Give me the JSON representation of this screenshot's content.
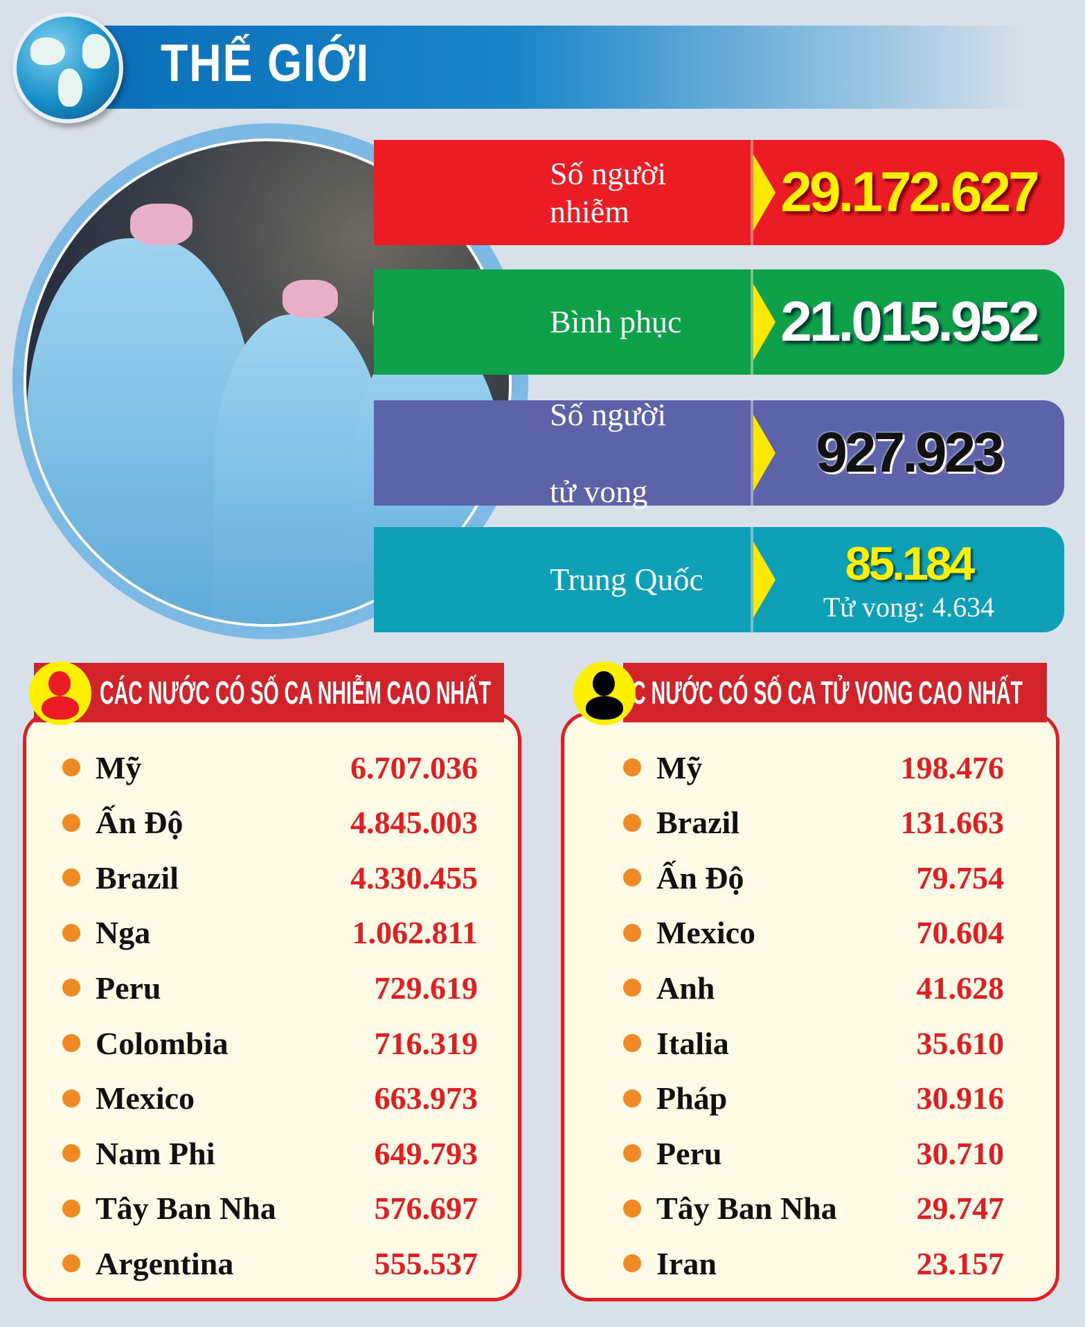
{
  "header": {
    "title": "THẾ GIỚI",
    "globe_icon": "globe-icon"
  },
  "colors": {
    "infected": "#ec1c24",
    "recovered": "#0ea14a",
    "deaths": "#5c63a8",
    "china": "#0ea0b6",
    "accent_yellow": "#ffe800",
    "list_red": "#d2232a"
  },
  "stats": [
    {
      "label_lines": [
        "Số người",
        "nhiễm"
      ],
      "value": "29.172.627",
      "value_color": "#ffef00"
    },
    {
      "label_lines": [
        "Bình phục"
      ],
      "value": "21.015.952",
      "value_color": "#ffffff"
    },
    {
      "label_lines": [
        "Số  người",
        "tử vong"
      ],
      "value": "927.923",
      "value_color": "#111111"
    },
    {
      "label_lines": [
        "Trung Quốc"
      ],
      "value": "85.184",
      "sub": "Tử vong: 4.634",
      "value_color": "#ffef00"
    }
  ],
  "lists": [
    {
      "title": "CÁC NƯỚC CÓ SỐ CA NHIỄM CAO NHẤT",
      "icon": "person-icon",
      "rows": [
        {
          "name": "Mỹ",
          "value": "6.707.036"
        },
        {
          "name": "Ấn Độ",
          "value": "4.845.003"
        },
        {
          "name": "Brazil",
          "value": "4.330.455"
        },
        {
          "name": "Nga",
          "value": "1.062.811"
        },
        {
          "name": "Peru",
          "value": "729.619"
        },
        {
          "name": "Colombia",
          "value": "716.319"
        },
        {
          "name": "Mexico",
          "value": "663.973"
        },
        {
          "name": "Nam Phi",
          "value": "649.793"
        },
        {
          "name": "Tây Ban Nha",
          "value": "576.697"
        },
        {
          "name": "Argentina",
          "value": "555.537"
        }
      ]
    },
    {
      "title": "C NƯỚC CÓ SỐ CA TỬ VONG CAO NHẤT",
      "icon": "person-icon",
      "rows": [
        {
          "name": "Mỹ",
          "value": "198.476"
        },
        {
          "name": "Brazil",
          "value": "131.663"
        },
        {
          "name": "Ấn Độ",
          "value": "79.754"
        },
        {
          "name": "Mexico",
          "value": "70.604"
        },
        {
          "name": "Anh",
          "value": "41.628"
        },
        {
          "name": "Italia",
          "value": "35.610"
        },
        {
          "name": "Pháp",
          "value": "30.916"
        },
        {
          "name": "Peru",
          "value": "30.710"
        },
        {
          "name": "Tây Ban Nha",
          "value": "29.747"
        },
        {
          "name": "Iran",
          "value": "23.157"
        }
      ]
    }
  ]
}
